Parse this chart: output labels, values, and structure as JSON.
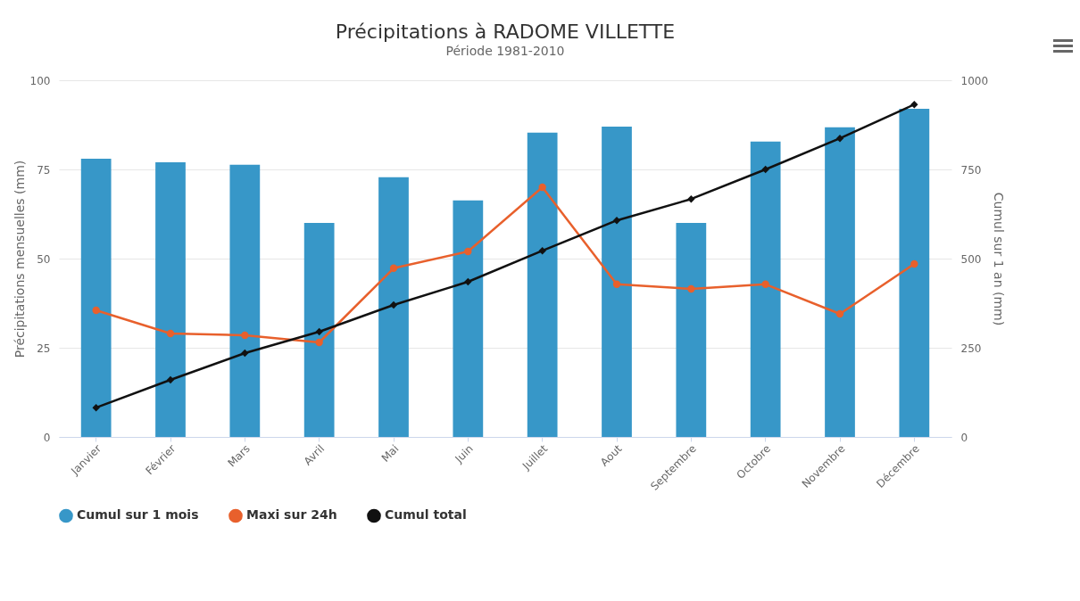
{
  "chart_data": {
    "type": "bar",
    "title": "Précipitations à RADOME VILLETTE",
    "subtitle": "Période 1981-2010",
    "ylabel": "Précipitations mensuelles (mm)",
    "y2label": "Cumul sur 1 an (mm)",
    "categories": [
      "Janvier",
      "Février",
      "Mars",
      "Avril",
      "Mai",
      "Juin",
      "Juillet",
      "Aout",
      "Septembre",
      "Octobre",
      "Novembre",
      "Décembre"
    ],
    "series": [
      {
        "name": "Cumul sur 1 mois",
        "color": "#3797c8",
        "values": [
          78,
          77,
          76.3,
          60,
          72.8,
          66.3,
          85.3,
          87,
          60,
          82.8,
          86.8,
          92
        ]
      },
      {
        "name": "Maxi sur 24h",
        "type": "line",
        "color": "#e8602c",
        "marker": "circle",
        "values": [
          35.5,
          29,
          28.5,
          26.5,
          47.3,
          52,
          70,
          42.8,
          41.5,
          42.8,
          34.5,
          48.5
        ]
      },
      {
        "name": "Cumul total",
        "type": "line",
        "axis": "y2",
        "color": "#111111",
        "marker": "diamond",
        "values": [
          82,
          160,
          235,
          295,
          370,
          435,
          522,
          607,
          667,
          750,
          837,
          932
        ]
      }
    ],
    "ylim": [
      0,
      100
    ],
    "yticks": [
      0,
      25,
      50,
      75,
      100
    ],
    "y2lim": [
      0,
      1000
    ],
    "y2ticks": [
      0,
      250,
      500,
      750,
      1000
    ],
    "grid": "y",
    "legend": "bottom"
  }
}
